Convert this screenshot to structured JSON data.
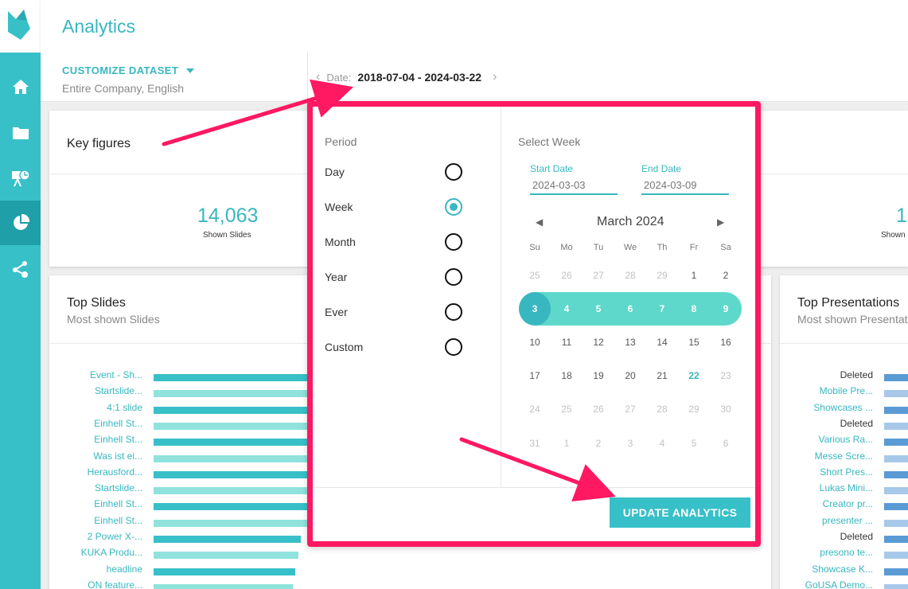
{
  "header": {
    "title": "Analytics"
  },
  "toolbar": {
    "customize_label": "CUSTOMIZE DATASET",
    "dataset_sub": "Entire Company, English",
    "date_label": "Date:",
    "date_value": "2018-07-04 - 2024-03-22"
  },
  "key_figures": {
    "title": "Key figures",
    "shown_slides_value": "14,063",
    "shown_slides_label": "Shown Slides",
    "right_value": "1",
    "right_label": "Shown"
  },
  "top_slides": {
    "title": "Top Slides",
    "subtitle": "Most shown Slides",
    "rows": [
      {
        "label": "Event - Sh...",
        "value": 1.0,
        "color": "#38c0c8"
      },
      {
        "label": "Startslide...",
        "value": 0.82,
        "color": "#8fe3dc"
      },
      {
        "label": "4:1 slide",
        "value": 0.8,
        "color": "#38c0c8"
      },
      {
        "label": "Einhell St...",
        "value": 0.79,
        "color": "#8fe3dc"
      },
      {
        "label": "Einhell St...",
        "value": 0.78,
        "color": "#38c0c8"
      },
      {
        "label": "Was ist ei...",
        "value": 0.76,
        "color": "#8fe3dc"
      },
      {
        "label": "Herausford...",
        "value": 0.74,
        "color": "#38c0c8"
      },
      {
        "label": "Startslide...",
        "value": 0.72,
        "color": "#8fe3dc"
      },
      {
        "label": "Einhell St...",
        "value": 0.7,
        "color": "#38c0c8"
      },
      {
        "label": "Einhell St...",
        "value": 0.68,
        "color": "#8fe3dc"
      },
      {
        "label": "2 Power X-...",
        "value": 0.56,
        "color": "#38c0c8"
      },
      {
        "label": "KUKA Produ...",
        "value": 0.55,
        "color": "#8fe3dc"
      },
      {
        "label": "headline",
        "value": 0.54,
        "color": "#38c0c8"
      },
      {
        "label": "ON feature...",
        "value": 0.53,
        "color": "#8fe3dc"
      }
    ]
  },
  "top_presentations": {
    "title": "Top Presentations",
    "subtitle": "Most shown Presentat",
    "rows": [
      {
        "label": "Deleted",
        "color": "#5b9bd5",
        "deleted": true
      },
      {
        "label": "Mobile Pre...",
        "color": "#a8c8ea",
        "deleted": false
      },
      {
        "label": "Showcases ...",
        "color": "#5b9bd5",
        "deleted": false
      },
      {
        "label": "Deleted",
        "color": "#a8c8ea",
        "deleted": true
      },
      {
        "label": "Various Ra...",
        "color": "#5b9bd5",
        "deleted": false
      },
      {
        "label": "Messe Scre...",
        "color": "#a8c8ea",
        "deleted": false
      },
      {
        "label": "Short Pres...",
        "color": "#5b9bd5",
        "deleted": false
      },
      {
        "label": "Lukas Mini...",
        "color": "#a8c8ea",
        "deleted": false
      },
      {
        "label": "Creator pr...",
        "color": "#5b9bd5",
        "deleted": false
      },
      {
        "label": "presenter ...",
        "color": "#a8c8ea",
        "deleted": false
      },
      {
        "label": "Deleted",
        "color": "#5b9bd5",
        "deleted": true
      },
      {
        "label": "presono te...",
        "color": "#a8c8ea",
        "deleted": false
      },
      {
        "label": "Showcase K...",
        "color": "#5b9bd5",
        "deleted": false
      },
      {
        "label": "GoUSA Demo...",
        "color": "#a8c8ea",
        "deleted": false
      }
    ]
  },
  "popup": {
    "period_title": "Period",
    "periods": [
      {
        "label": "Day",
        "checked": false
      },
      {
        "label": "Week",
        "checked": true
      },
      {
        "label": "Month",
        "checked": false
      },
      {
        "label": "Year",
        "checked": false
      },
      {
        "label": "Ever",
        "checked": false
      },
      {
        "label": "Custom",
        "checked": false
      }
    ],
    "week_title": "Select Week",
    "start_label": "Start Date",
    "start_value": "2024-03-03",
    "end_label": "End Date",
    "end_value": "2024-03-09",
    "month_label": "March 2024",
    "dow": [
      "Su",
      "Mo",
      "Tu",
      "We",
      "Th",
      "Fr",
      "Sa"
    ],
    "weeks": [
      [
        {
          "d": "25",
          "s": "muted"
        },
        {
          "d": "26",
          "s": "muted"
        },
        {
          "d": "27",
          "s": "muted"
        },
        {
          "d": "28",
          "s": "muted"
        },
        {
          "d": "29",
          "s": "muted"
        },
        {
          "d": "1",
          "s": "normal"
        },
        {
          "d": "2",
          "s": "normal"
        }
      ],
      [
        {
          "d": "3",
          "s": "sel"
        },
        {
          "d": "4",
          "s": "sel"
        },
        {
          "d": "5",
          "s": "sel"
        },
        {
          "d": "6",
          "s": "sel"
        },
        {
          "d": "7",
          "s": "sel"
        },
        {
          "d": "8",
          "s": "sel"
        },
        {
          "d": "9",
          "s": "sel"
        }
      ],
      [
        {
          "d": "10",
          "s": "normal"
        },
        {
          "d": "11",
          "s": "normal"
        },
        {
          "d": "12",
          "s": "normal"
        },
        {
          "d": "13",
          "s": "normal"
        },
        {
          "d": "14",
          "s": "normal"
        },
        {
          "d": "15",
          "s": "normal"
        },
        {
          "d": "16",
          "s": "normal"
        }
      ],
      [
        {
          "d": "17",
          "s": "normal"
        },
        {
          "d": "18",
          "s": "normal"
        },
        {
          "d": "19",
          "s": "normal"
        },
        {
          "d": "20",
          "s": "normal"
        },
        {
          "d": "21",
          "s": "normal"
        },
        {
          "d": "22",
          "s": "today"
        },
        {
          "d": "23",
          "s": "muted"
        }
      ],
      [
        {
          "d": "24",
          "s": "muted"
        },
        {
          "d": "25",
          "s": "muted"
        },
        {
          "d": "26",
          "s": "muted"
        },
        {
          "d": "27",
          "s": "muted"
        },
        {
          "d": "28",
          "s": "muted"
        },
        {
          "d": "29",
          "s": "muted"
        },
        {
          "d": "30",
          "s": "muted"
        }
      ],
      [
        {
          "d": "31",
          "s": "muted"
        },
        {
          "d": "1",
          "s": "muted"
        },
        {
          "d": "2",
          "s": "muted"
        },
        {
          "d": "3",
          "s": "muted"
        },
        {
          "d": "4",
          "s": "muted"
        },
        {
          "d": "5",
          "s": "muted"
        },
        {
          "d": "6",
          "s": "muted"
        }
      ]
    ],
    "update_label": "UPDATE ANALYTICS"
  },
  "colors": {
    "accent": "#38c0c8",
    "highlight": "#ff1862"
  }
}
